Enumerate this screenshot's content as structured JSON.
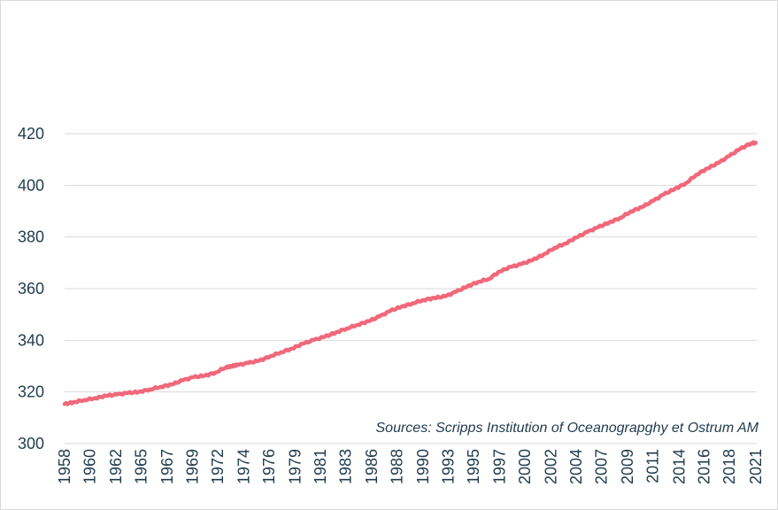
{
  "chart_data": {
    "type": "line",
    "title": "",
    "xlabel": "",
    "ylabel": "",
    "source_note": "Sources: Scripps Institution of Oceanograpghy et Ostrum AM",
    "ylim": [
      300,
      420
    ],
    "xlim": [
      1958.2,
      2021.5
    ],
    "grid": true,
    "y_ticks": [
      300,
      320,
      340,
      360,
      380,
      400,
      420
    ],
    "x_tick_labels": [
      "1958",
      "1960",
      "1962",
      "1965",
      "1967",
      "1969",
      "1972",
      "1974",
      "1976",
      "1979",
      "1981",
      "1983",
      "1986",
      "1988",
      "1990",
      "1993",
      "1995",
      "1997",
      "2000",
      "2002",
      "2004",
      "2007",
      "2009",
      "2011",
      "2014",
      "2016",
      "2018",
      "2021"
    ],
    "x_tick_positions": [
      1958.2,
      1960.5,
      1962.9,
      1965.2,
      1967.6,
      1969.9,
      1972.2,
      1974.6,
      1976.9,
      1979.3,
      1981.6,
      1983.9,
      1986.3,
      1988.6,
      1991.0,
      1993.3,
      1995.6,
      1998.0,
      2000.3,
      2002.7,
      2005.0,
      2007.3,
      2009.7,
      2012.0,
      2014.4,
      2016.7,
      2019.0,
      2021.4
    ],
    "series": [
      {
        "color": "#f0687a",
        "x": [
          1958.2,
          1959.0,
          1960.0,
          1961.0,
          1962.0,
          1963.0,
          1964.0,
          1965.0,
          1966.0,
          1967.0,
          1968.0,
          1969.0,
          1970.0,
          1971.0,
          1972.0,
          1973.0,
          1973.5,
          1974.0,
          1975.0,
          1976.0,
          1977.0,
          1978.0,
          1979.0,
          1980.0,
          1981.0,
          1982.0,
          1983.0,
          1984.0,
          1985.0,
          1986.0,
          1987.0,
          1988.0,
          1989.0,
          1990.0,
          1991.0,
          1992.0,
          1993.0,
          1994.0,
          1995.0,
          1996.0,
          1997.0,
          1998.0,
          1999.0,
          2000.0,
          2001.0,
          2002.0,
          2003.0,
          2004.0,
          2005.0,
          2006.0,
          2007.0,
          2008.0,
          2009.0,
          2010.0,
          2011.0,
          2012.0,
          2013.0,
          2014.0,
          2015.0,
          2016.0,
          2017.0,
          2018.0,
          2019.0,
          2020.0,
          2021.0,
          2021.4
        ],
        "values": [
          315.3,
          316.0,
          316.9,
          317.6,
          318.5,
          319.0,
          319.6,
          320.0,
          321.0,
          322.0,
          322.9,
          324.5,
          325.7,
          326.3,
          327.5,
          329.7,
          330.0,
          330.4,
          331.2,
          332.1,
          333.8,
          335.4,
          336.8,
          338.7,
          340.1,
          341.4,
          343.0,
          344.6,
          346.0,
          347.4,
          349.2,
          351.4,
          353.0,
          354.3,
          355.6,
          356.4,
          357.0,
          358.8,
          360.8,
          362.6,
          363.8,
          366.7,
          368.4,
          369.5,
          371.1,
          373.2,
          375.8,
          377.5,
          379.8,
          381.9,
          383.8,
          385.6,
          387.4,
          389.9,
          391.6,
          393.9,
          396.5,
          398.6,
          400.8,
          404.2,
          406.6,
          408.7,
          411.4,
          414.2,
          416.3,
          416.5
        ]
      }
    ]
  }
}
